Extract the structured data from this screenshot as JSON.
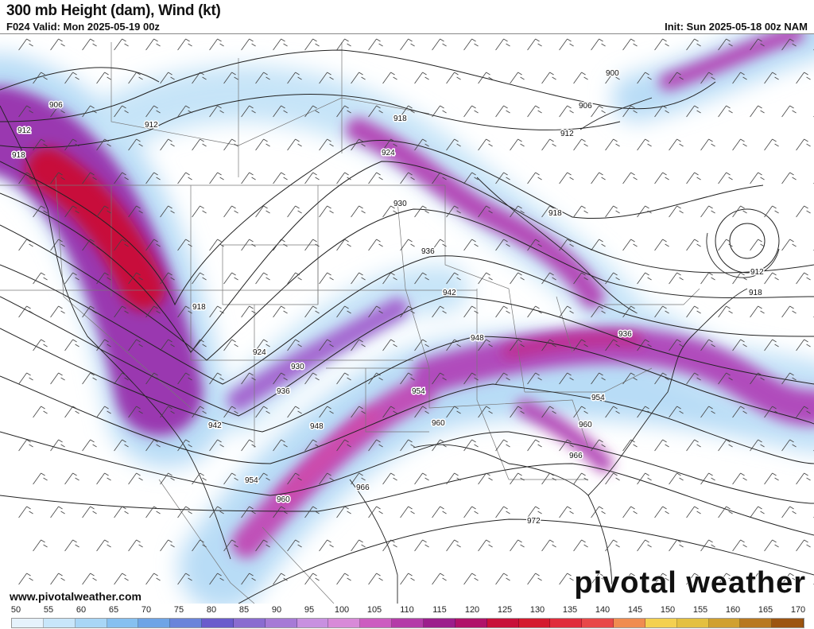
{
  "header": {
    "title": "300 mb Height (dam), Wind (kt)",
    "valid": "F024 Valid: Mon 2025-05-19 00z",
    "init": "Init: Sun 2025-05-18 00z NAM"
  },
  "footer": {
    "url": "www.pivotalweather.com",
    "brand": "pivotal weather"
  },
  "colorbar": {
    "labels": [
      "50",
      "55",
      "60",
      "65",
      "70",
      "75",
      "80",
      "85",
      "90",
      "95",
      "100",
      "105",
      "110",
      "115",
      "120",
      "125",
      "130",
      "135",
      "140",
      "145",
      "150",
      "155",
      "160",
      "165",
      "170"
    ],
    "colors": [
      "#e6f2fc",
      "#c8e6fa",
      "#a8d6f6",
      "#86c0f0",
      "#6ea4e6",
      "#6a84da",
      "#6a5ccc",
      "#8a6cd0",
      "#a67ad6",
      "#c890e0",
      "#d88ad8",
      "#cc5cc0",
      "#b43ca8",
      "#9c1e8c",
      "#b0126a",
      "#c8103a",
      "#d41a2e",
      "#e02c3c",
      "#e84848",
      "#f08c50",
      "#f4d050",
      "#e4c040",
      "#d0a030",
      "#b87820",
      "#9c5410"
    ]
  },
  "contours": [
    "900",
    "906",
    "912",
    "918",
    "924",
    "930",
    "936",
    "942",
    "948",
    "954",
    "960",
    "966",
    "972"
  ],
  "contour_labels": [
    {
      "text": "906"
    },
    {
      "text": "912"
    },
    {
      "text": "918"
    },
    {
      "text": "912"
    },
    {
      "text": "918"
    },
    {
      "text": "918"
    },
    {
      "text": "924"
    },
    {
      "text": "930"
    },
    {
      "text": "936"
    },
    {
      "text": "942"
    },
    {
      "text": "948"
    },
    {
      "text": "924"
    },
    {
      "text": "930"
    },
    {
      "text": "936"
    },
    {
      "text": "942"
    },
    {
      "text": "948"
    },
    {
      "text": "954"
    },
    {
      "text": "960"
    },
    {
      "text": "954"
    },
    {
      "text": "960"
    },
    {
      "text": "966"
    },
    {
      "text": "972"
    },
    {
      "text": "936"
    },
    {
      "text": "954"
    },
    {
      "text": "960"
    },
    {
      "text": "966"
    },
    {
      "text": "900"
    },
    {
      "text": "906"
    },
    {
      "text": "912"
    },
    {
      "text": "918"
    },
    {
      "text": "912"
    },
    {
      "text": "918"
    }
  ]
}
